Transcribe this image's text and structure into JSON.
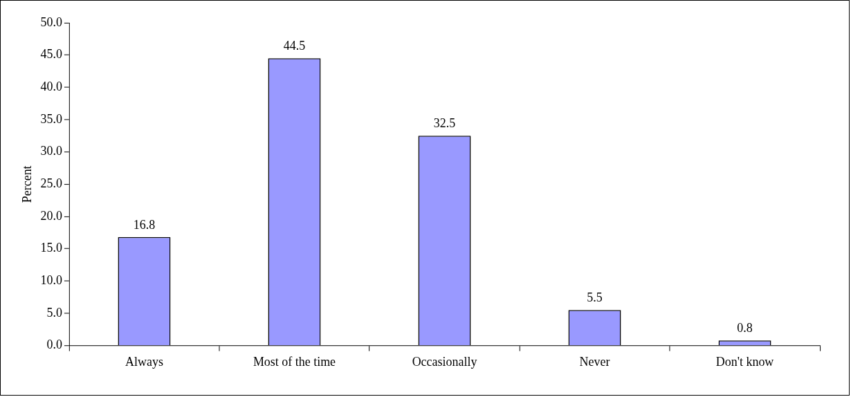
{
  "chart_data": {
    "type": "bar",
    "ylabel": "Percent",
    "categories": [
      "Always",
      "Most of the time",
      "Occasionally",
      "Never",
      "Don't know"
    ],
    "values": [
      16.8,
      44.5,
      32.5,
      5.5,
      0.8
    ],
    "color": "#9999ff",
    "ylim": [
      0,
      50
    ],
    "yticks": [
      {
        "value": 0,
        "label": "0.0"
      },
      {
        "value": 5,
        "label": "5.0"
      },
      {
        "value": 10,
        "label": "10.0"
      },
      {
        "value": 15,
        "label": "15.0"
      },
      {
        "value": 20,
        "label": "20.0"
      },
      {
        "value": 25,
        "label": "25.0"
      },
      {
        "value": 30,
        "label": "30.0"
      },
      {
        "value": 35,
        "label": "35.0"
      },
      {
        "value": 40,
        "label": "40.0"
      },
      {
        "value": 45,
        "label": "45.0"
      },
      {
        "value": 50,
        "label": "50.0"
      }
    ],
    "grid": false,
    "legend": false,
    "data_labels": true
  }
}
